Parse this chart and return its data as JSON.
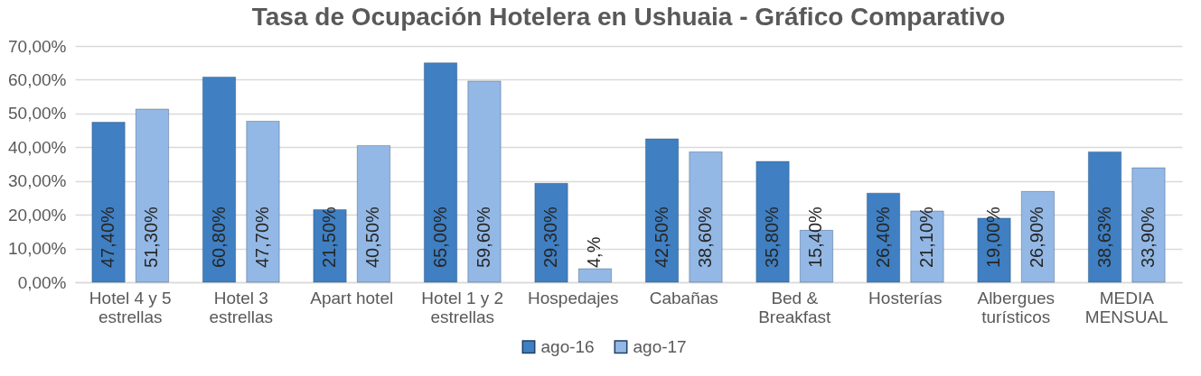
{
  "chart_data": {
    "type": "bar",
    "title": "Tasa de Ocupación Hotelera en Ushuaia - Gráfico Comparativo",
    "categories": [
      "Hotel 4 y 5 estrellas",
      "Hotel 3 estrellas",
      "Apart hotel",
      "Hotel 1 y 2 estrellas",
      "Hospedajes",
      "Cabañas",
      "Bed & Breakfast",
      "Hosterías",
      "Albergues turísticos",
      "MEDIA MENSUAL"
    ],
    "series": [
      {
        "name": "ago-16",
        "color": "#3f7fc2",
        "values": [
          47.4,
          60.8,
          21.5,
          65.0,
          29.3,
          42.5,
          35.8,
          26.4,
          19.0,
          38.63
        ],
        "value_labels": [
          "47,40%",
          "60,80%",
          "21,50%",
          "65,00%",
          "29,30%",
          "42,50%",
          "35,80%",
          "26,40%",
          "19,00%",
          "38,63%"
        ]
      },
      {
        "name": "ago-17",
        "color": "#93b8e5",
        "values": [
          51.3,
          47.7,
          40.5,
          59.6,
          4,
          38.6,
          15.4,
          21.1,
          26.9,
          33.9
        ],
        "value_labels": [
          "51,30%",
          "47,70%",
          "40,50%",
          "59,60%",
          "4,%",
          "38,60%",
          "15,40%",
          "21,10%",
          "26,90%",
          "33,90%"
        ]
      }
    ],
    "ylim": [
      0,
      70
    ],
    "yticks": [
      {
        "value": 0,
        "label": "0,00%"
      },
      {
        "value": 10,
        "label": "10,00%"
      },
      {
        "value": 20,
        "label": "20,00%"
      },
      {
        "value": 30,
        "label": "30,00%"
      },
      {
        "value": 40,
        "label": "40,00%"
      },
      {
        "value": 50,
        "label": "50,00%"
      },
      {
        "value": 60,
        "label": "60,00%"
      },
      {
        "value": 70,
        "label": "70,00%"
      }
    ],
    "grid": "y",
    "legend": "bottom"
  }
}
